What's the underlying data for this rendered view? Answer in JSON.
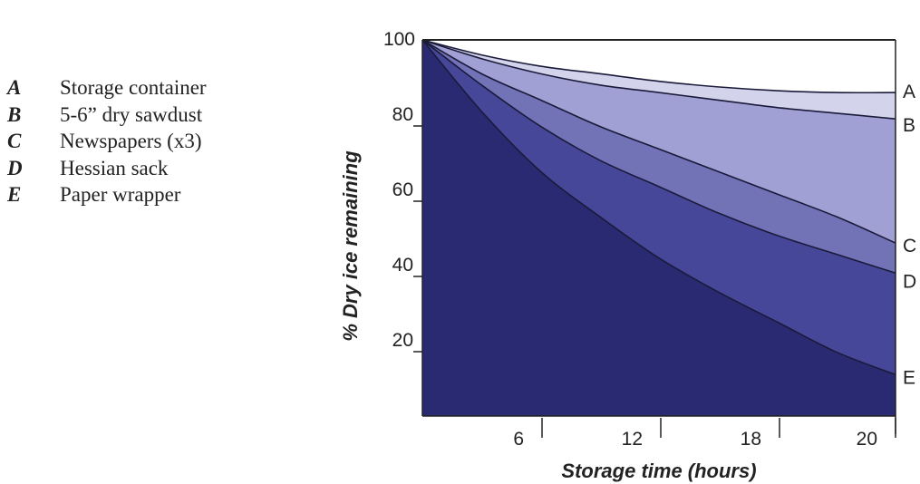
{
  "legend": [
    {
      "key": "A",
      "label": "Storage container"
    },
    {
      "key": "B",
      "label": "5-6” dry sawdust"
    },
    {
      "key": "C",
      "label": "Newspapers (x3)"
    },
    {
      "key": "D",
      "label": "Hessian sack"
    },
    {
      "key": "E",
      "label": "Paper wrapper"
    }
  ],
  "chart_data": {
    "type": "area",
    "xlabel": "Storage time (hours)",
    "ylabel": "% Dry ice remaining",
    "xlim": [
      0,
      24
    ],
    "ylim": [
      0,
      100
    ],
    "x_ticks": [
      6,
      12,
      18,
      20
    ],
    "y_ticks": [
      20,
      40,
      60,
      80,
      100
    ],
    "grid": false,
    "x": [
      0,
      3,
      6,
      9,
      12,
      15,
      18,
      21,
      24
    ],
    "series": [
      {
        "name": "A",
        "values": [
          100,
          96,
          93,
          91,
          89,
          87.5,
          86.5,
          86,
          86
        ],
        "color": "#d3d3ec"
      },
      {
        "name": "B",
        "values": [
          100,
          95,
          91,
          88,
          86,
          84,
          82,
          80.5,
          79
        ],
        "color": "#a0a0d4"
      },
      {
        "name": "C",
        "values": [
          100,
          91,
          84,
          77,
          71,
          65,
          59,
          53,
          46
        ],
        "color": "#7272b7"
      },
      {
        "name": "D",
        "values": [
          100,
          88,
          77,
          68,
          61,
          54,
          48,
          43,
          38
        ],
        "color": "#47479a"
      },
      {
        "name": "E",
        "values": [
          100,
          81,
          65,
          53,
          42,
          33,
          25,
          17,
          11
        ],
        "color": "#2a2a72"
      }
    ]
  }
}
